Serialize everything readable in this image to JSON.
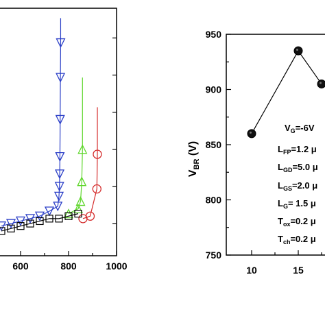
{
  "chart_data": [
    {
      "type": "scatter",
      "title": "",
      "xlabel": "",
      "ylabel": "",
      "xlim": [
        500,
        1000
      ],
      "x_ticks": [
        "600",
        "800",
        "1000"
      ],
      "series": [
        {
          "marker": "down-triangle",
          "color": "#2b3fc7",
          "points": [
            [
              520,
              0.12
            ],
            [
              560,
              0.13
            ],
            [
              600,
              0.14
            ],
            [
              640,
              0.15
            ],
            [
              680,
              0.16
            ],
            [
              720,
              0.18
            ],
            [
              755,
              0.2
            ],
            [
              760,
              0.24
            ],
            [
              762,
              0.28
            ],
            [
              763,
              0.33
            ],
            [
              764,
              0.4
            ],
            [
              765,
              0.55
            ],
            [
              766,
              0.72
            ],
            [
              767,
              0.86
            ]
          ],
          "spike": [
            [
              767,
              0.86
            ],
            [
              767,
              0.96
            ]
          ]
        },
        {
          "marker": "up-triangle",
          "color": "#5dd62a",
          "points": [
            [
              800,
              0.17
            ],
            [
              840,
              0.19
            ],
            [
              850,
              0.22
            ],
            [
              855,
              0.3
            ],
            [
              858,
              0.43
            ]
          ],
          "spike": [
            [
              858,
              0.43
            ],
            [
              858,
              0.72
            ]
          ]
        },
        {
          "marker": "circle",
          "color": "#d42a2a",
          "points": [
            [
              860,
              0.15
            ],
            [
              890,
              0.16
            ],
            [
              918,
              0.27
            ],
            [
              920,
              0.41
            ]
          ],
          "spike": [
            [
              920,
              0.41
            ],
            [
              920,
              0.6
            ]
          ]
        },
        {
          "marker": "square",
          "color": "#000000",
          "points": [
            [
              520,
              0.1
            ],
            [
              560,
              0.11
            ],
            [
              600,
              0.12
            ],
            [
              640,
              0.13
            ],
            [
              680,
              0.14
            ],
            [
              720,
              0.15
            ],
            [
              760,
              0.15
            ],
            [
              800,
              0.16
            ],
            [
              840,
              0.17
            ]
          ]
        }
      ]
    },
    {
      "type": "line",
      "title": "",
      "xlabel": "",
      "ylabel": "V_BR (V)",
      "ylim": [
        750,
        950
      ],
      "y_ticks": [
        "750",
        "800",
        "850",
        "900",
        "950"
      ],
      "x_ticks": [
        "10",
        "15"
      ],
      "x": [
        10,
        15,
        17.5
      ],
      "values": [
        860,
        935,
        905
      ],
      "annotations": [
        {
          "main": "V",
          "sub": "G",
          "rest": "=-6V"
        },
        {
          "main": "L",
          "sub": "FP",
          "rest": "=1.2 μ"
        },
        {
          "main": "L",
          "sub": "GD",
          "rest": "=5.0 μ"
        },
        {
          "main": "L",
          "sub": "GS",
          "rest": "=2.0 μ"
        },
        {
          "main": "L",
          "sub": "G",
          "rest": "= 1.5 μ"
        },
        {
          "main": "T",
          "sub": "ox",
          "rest": "=0.2 μ"
        },
        {
          "main": "T",
          "sub": "ch",
          "rest": "=0.2 μ"
        }
      ]
    }
  ]
}
